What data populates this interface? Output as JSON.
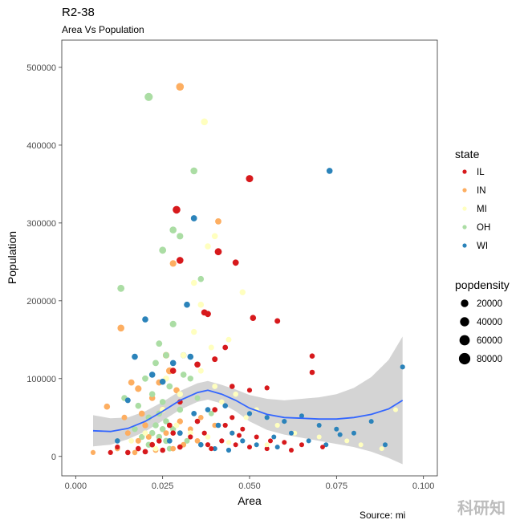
{
  "chart_data": {
    "type": "scatter",
    "title": "R2-38",
    "subtitle": "Area Vs Population",
    "xlabel": "Area",
    "ylabel": "Population",
    "caption": "Source: mi",
    "watermark": "科研知",
    "xlim": [
      -0.004,
      0.104
    ],
    "ylim": [
      -25000,
      535000
    ],
    "x_ticks": [
      0.0,
      0.025,
      0.05,
      0.075,
      0.1
    ],
    "x_tick_labels": [
      "0.000",
      "0.025",
      "0.050",
      "0.075",
      "0.100"
    ],
    "y_ticks": [
      0,
      100000,
      200000,
      300000,
      400000,
      500000
    ],
    "y_tick_labels": [
      "0",
      "100000",
      "200000",
      "300000",
      "400000",
      "500000"
    ],
    "grid": false,
    "color_legend": {
      "title": "state",
      "position": "right",
      "entries": [
        {
          "label": "IL",
          "color": "#d7191c"
        },
        {
          "label": "IN",
          "color": "#fdae61"
        },
        {
          "label": "MI",
          "color": "#ffffbf"
        },
        {
          "label": "OH",
          "color": "#abdda4"
        },
        {
          "label": "WI",
          "color": "#2b83ba"
        }
      ]
    },
    "size_legend": {
      "title": "popdensity",
      "position": "right",
      "entries": [
        {
          "label": "20000",
          "value": 20000
        },
        {
          "label": "40000",
          "value": 40000
        },
        {
          "label": "60000",
          "value": 60000
        },
        {
          "label": "80000",
          "value": 80000
        }
      ]
    },
    "smooth_line": {
      "x": [
        0.005,
        0.01,
        0.015,
        0.02,
        0.025,
        0.03,
        0.035,
        0.038,
        0.042,
        0.046,
        0.05,
        0.055,
        0.06,
        0.065,
        0.07,
        0.075,
        0.08,
        0.085,
        0.09,
        0.094
      ],
      "y": [
        33000,
        32000,
        36000,
        45000,
        58000,
        72000,
        82000,
        85000,
        80000,
        72000,
        62000,
        54000,
        50000,
        49000,
        48000,
        48000,
        50000,
        54000,
        61000,
        72000
      ],
      "ci_low": [
        13000,
        15000,
        22000,
        32000,
        46000,
        60000,
        70000,
        73000,
        68000,
        58000,
        45000,
        34000,
        28000,
        24000,
        20000,
        16000,
        12000,
        6000,
        -2000,
        -10000
      ],
      "ci_high": [
        53000,
        49000,
        50000,
        58000,
        70000,
        84000,
        94000,
        97000,
        92000,
        86000,
        79000,
        74000,
        72000,
        74000,
        76000,
        80000,
        88000,
        102000,
        124000,
        154000
      ],
      "color": "#3366ff",
      "ribbon_color": "#b0b0b0"
    },
    "series": [
      {
        "name": "IL",
        "color": "#d7191c",
        "points": [
          [
            0.05,
            357000,
            18000
          ],
          [
            0.029,
            317000,
            22000
          ],
          [
            0.03,
            252000,
            14000
          ],
          [
            0.041,
            263000,
            16000
          ],
          [
            0.046,
            249000,
            10000
          ],
          [
            0.038,
            183000,
            10000
          ],
          [
            0.037,
            185000,
            10000
          ],
          [
            0.051,
            178000,
            8000
          ],
          [
            0.058,
            174000,
            6000
          ],
          [
            0.068,
            129000,
            4000
          ],
          [
            0.068,
            108000,
            4000
          ],
          [
            0.04,
            125000,
            6000
          ],
          [
            0.043,
            140000,
            5000
          ],
          [
            0.035,
            118000,
            8000
          ],
          [
            0.028,
            110000,
            9000
          ],
          [
            0.045,
            90000,
            4000
          ],
          [
            0.05,
            85000,
            3000
          ],
          [
            0.055,
            88000,
            3000
          ],
          [
            0.03,
            70000,
            5000
          ],
          [
            0.04,
            60000,
            4000
          ],
          [
            0.045,
            50000,
            3000
          ],
          [
            0.035,
            45000,
            4000
          ],
          [
            0.027,
            40000,
            5000
          ],
          [
            0.048,
            35000,
            2000
          ],
          [
            0.052,
            25000,
            2000
          ],
          [
            0.056,
            20000,
            2000
          ],
          [
            0.06,
            18000,
            2000
          ],
          [
            0.065,
            15000,
            2000
          ],
          [
            0.042,
            20000,
            3000
          ],
          [
            0.038,
            15000,
            3000
          ],
          [
            0.03,
            12000,
            4000
          ],
          [
            0.025,
            8000,
            4000
          ],
          [
            0.02,
            6000,
            5000
          ],
          [
            0.015,
            5000,
            4000
          ],
          [
            0.01,
            5000,
            3000
          ],
          [
            0.022,
            15000,
            4000
          ],
          [
            0.018,
            10000,
            4000
          ],
          [
            0.033,
            25000,
            3000
          ],
          [
            0.037,
            30000,
            3000
          ],
          [
            0.046,
            15000,
            2000
          ],
          [
            0.05,
            12000,
            2000
          ],
          [
            0.055,
            10000,
            2000
          ],
          [
            0.024,
            20000,
            4000
          ],
          [
            0.028,
            30000,
            4000
          ],
          [
            0.043,
            40000,
            3000
          ],
          [
            0.047,
            27000,
            2000
          ],
          [
            0.039,
            10000,
            2000
          ],
          [
            0.062,
            8000,
            2000
          ],
          [
            0.071,
            12000,
            1500
          ],
          [
            0.012,
            12000,
            3000
          ]
        ]
      },
      {
        "name": "IN",
        "color": "#fdae61",
        "points": [
          [
            0.03,
            475000,
            22000
          ],
          [
            0.041,
            302000,
            10000
          ],
          [
            0.028,
            248000,
            12000
          ],
          [
            0.013,
            165000,
            14000
          ],
          [
            0.016,
            95000,
            10000
          ],
          [
            0.009,
            64000,
            8000
          ],
          [
            0.018,
            87000,
            12000
          ],
          [
            0.026,
            130000,
            12000
          ],
          [
            0.027,
            110000,
            14000
          ],
          [
            0.022,
            75000,
            9000
          ],
          [
            0.025,
            60000,
            8000
          ],
          [
            0.03,
            45000,
            7000
          ],
          [
            0.02,
            40000,
            7000
          ],
          [
            0.015,
            30000,
            6000
          ],
          [
            0.018,
            20000,
            6000
          ],
          [
            0.022,
            15000,
            5000
          ],
          [
            0.026,
            30000,
            6000
          ],
          [
            0.033,
            35000,
            5000
          ],
          [
            0.035,
            20000,
            5000
          ],
          [
            0.04,
            40000,
            4000
          ],
          [
            0.045,
            30000,
            3000
          ],
          [
            0.012,
            10000,
            4000
          ],
          [
            0.017,
            5000,
            4000
          ],
          [
            0.023,
            8000,
            5000
          ],
          [
            0.028,
            10000,
            5000
          ],
          [
            0.005,
            5000,
            3000
          ],
          [
            0.031,
            15000,
            5000
          ],
          [
            0.036,
            50000,
            4000
          ],
          [
            0.019,
            55000,
            8000
          ],
          [
            0.024,
            95000,
            10000
          ],
          [
            0.029,
            85000,
            9000
          ],
          [
            0.014,
            50000,
            6000
          ],
          [
            0.021,
            25000,
            6000
          ],
          [
            0.039,
            10000,
            3000
          ]
        ]
      },
      {
        "name": "MI",
        "color": "#ffffbf",
        "points": [
          [
            0.037,
            430000,
            14000
          ],
          [
            0.04,
            283000,
            9000
          ],
          [
            0.038,
            270000,
            9000
          ],
          [
            0.034,
            223000,
            9000
          ],
          [
            0.048,
            211000,
            7000
          ],
          [
            0.036,
            195000,
            8000
          ],
          [
            0.039,
            140000,
            6000
          ],
          [
            0.044,
            150000,
            6000
          ],
          [
            0.034,
            160000,
            7000
          ],
          [
            0.031,
            130000,
            8000
          ],
          [
            0.026,
            100000,
            8000
          ],
          [
            0.036,
            110000,
            6000
          ],
          [
            0.04,
            90000,
            5000
          ],
          [
            0.046,
            80000,
            4000
          ],
          [
            0.052,
            60000,
            3000
          ],
          [
            0.058,
            40000,
            3000
          ],
          [
            0.063,
            30000,
            2000
          ],
          [
            0.07,
            25000,
            2000
          ],
          [
            0.078,
            20000,
            2000
          ],
          [
            0.082,
            15000,
            2000
          ],
          [
            0.088,
            10000,
            2000
          ],
          [
            0.092,
            60000,
            2000
          ],
          [
            0.025,
            60000,
            7000
          ],
          [
            0.029,
            40000,
            6000
          ],
          [
            0.033,
            30000,
            5000
          ],
          [
            0.038,
            25000,
            4000
          ],
          [
            0.044,
            18000,
            3000
          ],
          [
            0.02,
            30000,
            6000
          ],
          [
            0.016,
            20000,
            5000
          ],
          [
            0.023,
            10000,
            5000
          ],
          [
            0.049,
            50000,
            3000
          ],
          [
            0.055,
            15000,
            2000
          ],
          [
            0.03,
            80000,
            7000
          ],
          [
            0.042,
            70000,
            4000
          ]
        ]
      },
      {
        "name": "OH",
        "color": "#abdda4",
        "points": [
          [
            0.021,
            462000,
            28000
          ],
          [
            0.034,
            367000,
            14000
          ],
          [
            0.028,
            291000,
            14000
          ],
          [
            0.03,
            283000,
            12000
          ],
          [
            0.025,
            265000,
            16000
          ],
          [
            0.036,
            228000,
            9000
          ],
          [
            0.013,
            216000,
            16000
          ],
          [
            0.028,
            170000,
            12000
          ],
          [
            0.024,
            145000,
            10000
          ],
          [
            0.026,
            130000,
            10000
          ],
          [
            0.023,
            120000,
            10000
          ],
          [
            0.031,
            105000,
            9000
          ],
          [
            0.02,
            100000,
            10000
          ],
          [
            0.027,
            90000,
            10000
          ],
          [
            0.022,
            80000,
            9000
          ],
          [
            0.025,
            70000,
            9000
          ],
          [
            0.018,
            65000,
            9000
          ],
          [
            0.024,
            55000,
            9000
          ],
          [
            0.021,
            50000,
            9000
          ],
          [
            0.026,
            45000,
            8000
          ],
          [
            0.023,
            40000,
            8000
          ],
          [
            0.025,
            35000,
            9000
          ],
          [
            0.022,
            30000,
            8000
          ],
          [
            0.024,
            25000,
            8000
          ],
          [
            0.026,
            20000,
            8000
          ],
          [
            0.021,
            15000,
            7000
          ],
          [
            0.028,
            35000,
            7000
          ],
          [
            0.03,
            60000,
            8000
          ],
          [
            0.033,
            100000,
            7000
          ],
          [
            0.035,
            75000,
            6000
          ],
          [
            0.039,
            55000,
            5000
          ],
          [
            0.017,
            35000,
            7000
          ],
          [
            0.019,
            25000,
            7000
          ],
          [
            0.032,
            20000,
            6000
          ],
          [
            0.027,
            10000,
            6000
          ],
          [
            0.014,
            75000,
            8000
          ]
        ]
      },
      {
        "name": "WI",
        "color": "#2b83ba",
        "points": [
          [
            0.073,
            367000,
            8000
          ],
          [
            0.034,
            306000,
            10000
          ],
          [
            0.032,
            195000,
            9000
          ],
          [
            0.02,
            176000,
            8000
          ],
          [
            0.017,
            128000,
            8000
          ],
          [
            0.031,
            130000,
            9000
          ],
          [
            0.033,
            128000,
            8000
          ],
          [
            0.028,
            120000,
            8000
          ],
          [
            0.025,
            96000,
            8000
          ],
          [
            0.094,
            115000,
            3000
          ],
          [
            0.022,
            105000,
            8000
          ],
          [
            0.015,
            72000,
            6000
          ],
          [
            0.043,
            65000,
            4000
          ],
          [
            0.05,
            55000,
            3000
          ],
          [
            0.055,
            50000,
            3000
          ],
          [
            0.06,
            45000,
            3000
          ],
          [
            0.065,
            52000,
            2000
          ],
          [
            0.07,
            40000,
            2000
          ],
          [
            0.075,
            35000,
            2000
          ],
          [
            0.08,
            30000,
            2000
          ],
          [
            0.085,
            45000,
            2000
          ],
          [
            0.089,
            15000,
            2000
          ],
          [
            0.034,
            55000,
            5000
          ],
          [
            0.038,
            60000,
            4000
          ],
          [
            0.041,
            40000,
            4000
          ],
          [
            0.045,
            30000,
            3000
          ],
          [
            0.048,
            20000,
            3000
          ],
          [
            0.052,
            15000,
            2000
          ],
          [
            0.057,
            25000,
            2000
          ],
          [
            0.062,
            30000,
            2000
          ],
          [
            0.067,
            20000,
            2000
          ],
          [
            0.072,
            15000,
            2000
          ],
          [
            0.03,
            30000,
            5000
          ],
          [
            0.027,
            20000,
            5000
          ],
          [
            0.036,
            15000,
            4000
          ],
          [
            0.04,
            10000,
            3000
          ],
          [
            0.044,
            8000,
            3000
          ],
          [
            0.012,
            20000,
            4000
          ],
          [
            0.058,
            12000,
            2000
          ],
          [
            0.076,
            28000,
            2000
          ]
        ]
      }
    ]
  }
}
